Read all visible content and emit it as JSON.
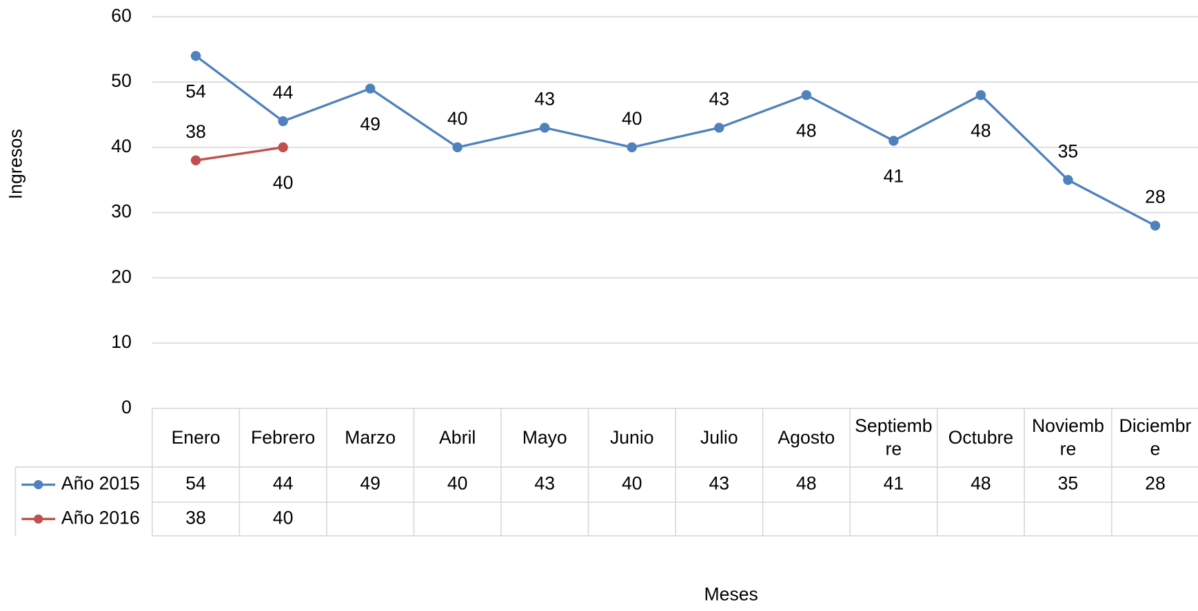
{
  "chart_data": {
    "type": "line",
    "x_label": "Meses",
    "y_label": "Ingresos",
    "categories": [
      "Enero",
      "Febrero",
      "Marzo",
      "Abril",
      "Mayo",
      "Junio",
      "Julio",
      "Agosto",
      "Septiembre",
      "Octubre",
      "Noviembre",
      "Diciembre"
    ],
    "series": [
      {
        "name": "Año 2015",
        "color": "#4f81bd",
        "values": [
          54,
          44,
          49,
          40,
          43,
          40,
          43,
          48,
          41,
          48,
          35,
          28
        ]
      },
      {
        "name": "Año 2016",
        "color": "#c0504d",
        "values": [
          38,
          40,
          null,
          null,
          null,
          null,
          null,
          null,
          null,
          null,
          null,
          null
        ]
      }
    ],
    "ylim": [
      0,
      60
    ],
    "yticks": [
      0,
      10,
      20,
      30,
      40,
      50,
      60
    ],
    "grid": true,
    "data_table": true
  }
}
